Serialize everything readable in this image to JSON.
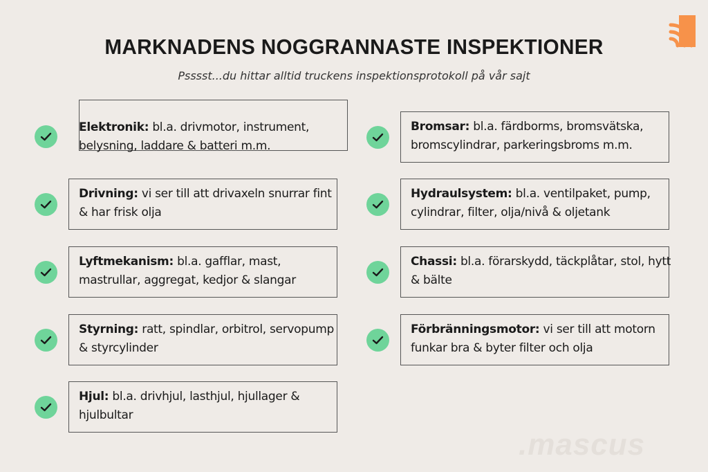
{
  "header": {
    "title": "MARKNADENS NOGGRANNASTE INSPEKTIONER",
    "subtitle": "Psssst...du hittar alltid truckens inspektionsprotokoll på vår sajt"
  },
  "colors": {
    "check": "#6fd49a",
    "logo": "#f7924a",
    "background": "#efebe7"
  },
  "left_items": [
    {
      "label": "Elektronik:",
      "text": "bl.a. drivmotor, instrument, belysning, laddare & batteri m.m."
    },
    {
      "label": "Drivning:",
      "text": "vi ser till att drivaxeln snurrar fint & har frisk olja"
    },
    {
      "label": "Lyftmekanism:",
      "text": "bl.a. gafflar, mast, mastrullar, aggregat, kedjor & slangar"
    },
    {
      "label": "Styrning:",
      "text": "ratt, spindlar, orbitrol, servopump & styrcylinder"
    },
    {
      "label": "Hjul:",
      "text": "bl.a. drivhjul, lasthjul, hjullager & hjulbultar"
    }
  ],
  "right_items": [
    {
      "label": "Bromsar:",
      "text": "bl.a. färdborms, bromsvätska, bromscylindrar, parkeringsbroms m.m."
    },
    {
      "label": "Hydraulsystem:",
      "text": "bl.a. ventilpaket, pump, cylindrar, filter, olja/nivå & oljetank"
    },
    {
      "label": "Chassi:",
      "text": "bl.a. förarskydd, täckplåtar, stol, hytt & bälte"
    },
    {
      "label": "Förbränningsmotor:",
      "text": "vi ser till att motorn funkar bra & byter filter och olja"
    }
  ],
  "watermark": ".mascus"
}
